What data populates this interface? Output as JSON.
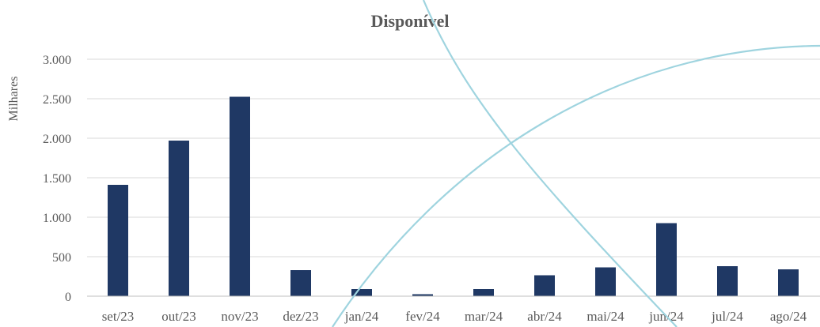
{
  "chart_data": {
    "type": "bar",
    "title": "Disponível",
    "ylabel": "Milhares",
    "xlabel": "",
    "categories": [
      "set/23",
      "out/23",
      "nov/23",
      "dez/23",
      "jan/24",
      "fev/24",
      "mar/24",
      "abr/24",
      "mai/24",
      "jun/24",
      "jul/24",
      "ago/24"
    ],
    "series": [
      {
        "values": [
          1410,
          1970,
          2525,
          330,
          90,
          25,
          90,
          265,
          365,
          925,
          380,
          340
        ]
      }
    ],
    "ylim": [
      0,
      3000
    ],
    "yticks": [
      0,
      500,
      1000,
      1500,
      2000,
      2500,
      3000
    ],
    "ytick_labels": [
      "0",
      "500",
      "1.000",
      "1.500",
      "2.000",
      "2.500",
      "3.000"
    ],
    "grid": true,
    "legend": "none",
    "colors": {
      "bar": "#1f3864",
      "grid": "#d9d9d9",
      "text": "#595959"
    }
  }
}
